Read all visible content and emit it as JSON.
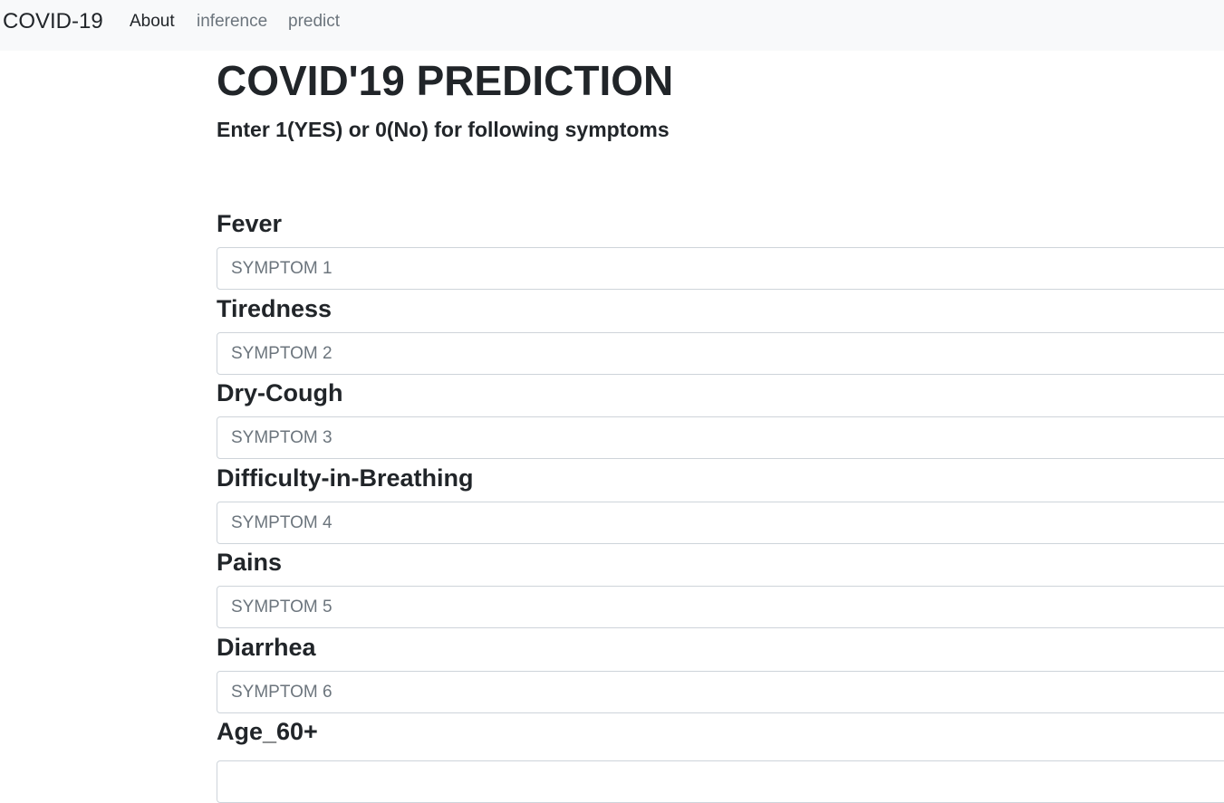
{
  "navbar": {
    "brand": "COVID-19",
    "links": [
      {
        "label": "About"
      },
      {
        "label": "inference"
      },
      {
        "label": "predict"
      }
    ]
  },
  "page": {
    "title": "COVID'19 PREDICTION",
    "subtitle": "Enter 1(YES) or 0(No) for following symptoms"
  },
  "fields": [
    {
      "label": "Fever",
      "placeholder": "SYMPTOM 1",
      "value": ""
    },
    {
      "label": "Tiredness",
      "placeholder": "SYMPTOM 2",
      "value": ""
    },
    {
      "label": "Dry-Cough",
      "placeholder": "SYMPTOM 3",
      "value": ""
    },
    {
      "label": "Difficulty-in-Breathing",
      "placeholder": "SYMPTOM 4",
      "value": ""
    },
    {
      "label": "Pains",
      "placeholder": "SYMPTOM 5",
      "value": ""
    },
    {
      "label": "Diarrhea",
      "placeholder": "SYMPTOM 6",
      "value": ""
    },
    {
      "label": "Age_60+"
    }
  ],
  "colors": {
    "navbar_bg": "#f8f9fa",
    "text": "#212529",
    "muted": "#6c757d",
    "input_border": "#ced4da"
  }
}
